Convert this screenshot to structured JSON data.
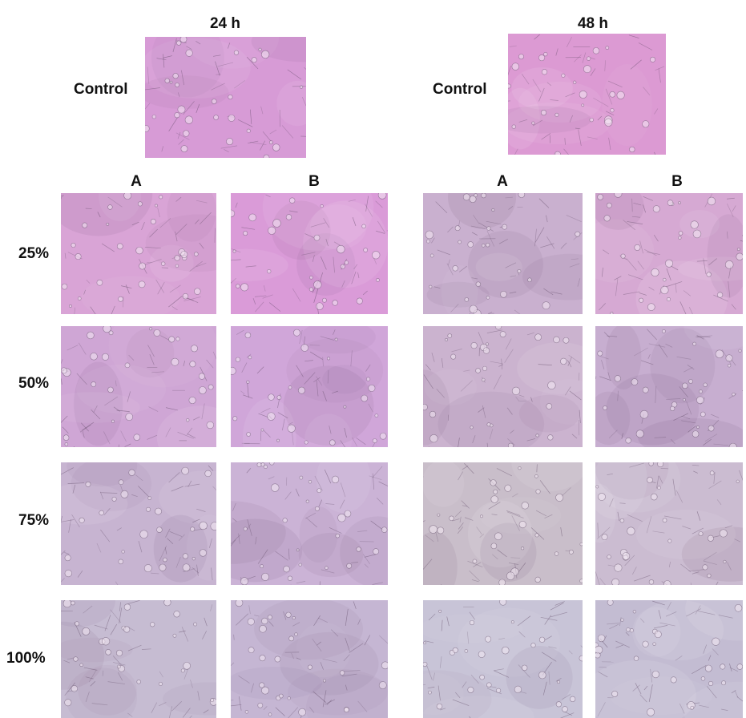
{
  "headers": {
    "t24": "24 h",
    "t48": "48 h"
  },
  "control_label": "Control",
  "columns": {
    "a": "A",
    "b": "B"
  },
  "rows": [
    "25%",
    "50%",
    "75%",
    "100%"
  ],
  "palette": {
    "control24": "#d79bd6",
    "control48": "#dc9ad3",
    "r0_24a": "#d9a4d6",
    "r0_24b": "#da9bd8",
    "r0_48a": "#c9b0cf",
    "r0_48b": "#d6a9d3",
    "r1_24a": "#cfa6d5",
    "r1_24b": "#d0a6d9",
    "r1_48a": "#cbb3cf",
    "r1_48b": "#c7aed0",
    "r2_24a": "#c7b4d1",
    "r2_24b": "#cbb3d6",
    "r2_48a": "#c9beca",
    "r2_48b": "#cbbcd1",
    "r3_24a": "#c6bcd2",
    "r3_24b": "#c5b6d3",
    "r3_48a": "#c8c4d7",
    "r3_48b": "#c3bcd2"
  }
}
